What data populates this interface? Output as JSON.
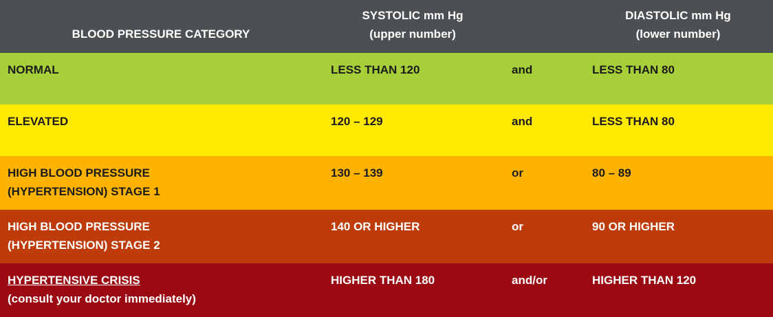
{
  "header": {
    "category": "BLOOD PRESSURE CATEGORY",
    "systolic": [
      "SYSTOLIC mm Hg",
      "(upper number)"
    ],
    "diastolic": [
      "DIASTOLIC mm Hg",
      "(lower number)"
    ]
  },
  "rows": [
    {
      "category": [
        "NORMAL"
      ],
      "systolic": "LESS THAN 120",
      "conjunction": "and",
      "diastolic": "LESS THAN 80"
    },
    {
      "category": [
        "ELEVATED"
      ],
      "systolic": "120 – 129",
      "conjunction": "and",
      "diastolic": "LESS THAN 80"
    },
    {
      "category": [
        "HIGH BLOOD PRESSURE",
        "(HYPERTENSION) STAGE 1"
      ],
      "systolic": "130 – 139",
      "conjunction": "or",
      "diastolic": "80 – 89"
    },
    {
      "category": [
        "HIGH BLOOD PRESSURE",
        "(HYPERTENSION) STAGE 2"
      ],
      "systolic": "140 OR HIGHER",
      "conjunction": "or",
      "diastolic": "90 OR HIGHER"
    },
    {
      "category": [
        "HYPERTENSIVE CRISIS",
        "(consult your doctor immediately)"
      ],
      "systolic": "HIGHER THAN 180",
      "conjunction": "and/or",
      "diastolic": "HIGHER THAN 120"
    }
  ]
}
